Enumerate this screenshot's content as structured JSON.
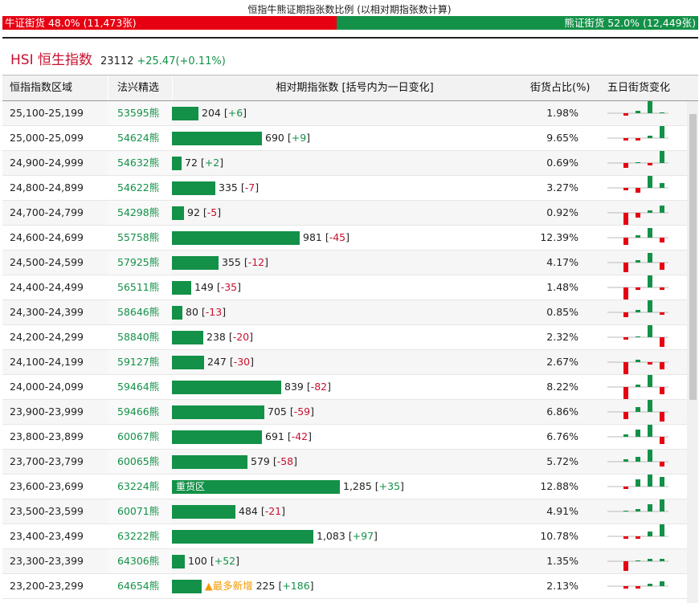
{
  "ratio": {
    "title": "恒指牛熊证期指张数比例 (以相对期指张数计算)",
    "bull_label": "牛证街货 48.0% (11,473张)",
    "bear_label": "熊证街货 52.0% (12,449张)",
    "bull_pct": 48.0,
    "bear_pct": 52.0,
    "bull_color": "#e60012",
    "bear_color": "#139148"
  },
  "index": {
    "name": "HSI 恒生指数",
    "value": "23112",
    "change": "+25.47(+0.11%)"
  },
  "columns": {
    "range": "恒指指数区域",
    "code": "法兴精选",
    "contracts": "相对期指张数 [括号内为一日变化]",
    "share": "街货占比(%)",
    "five_day": "五日街货变化"
  },
  "rows": [
    {
      "range": "25,100-25,199",
      "code": "53595熊",
      "contracts": 204,
      "contracts_label": "204",
      "change": "+6",
      "share": "1.98%",
      "spark": [
        -1,
        1,
        5,
        0,
        2
      ]
    },
    {
      "range": "25,000-25,099",
      "code": "54624熊",
      "contracts": 690,
      "contracts_label": "690",
      "change": "+9",
      "share": "9.65%",
      "spark": [
        -1,
        -1,
        1,
        5,
        -1
      ]
    },
    {
      "range": "24,900-24,999",
      "code": "54632熊",
      "contracts": 72,
      "contracts_label": "72",
      "change": "+2",
      "share": "0.69%",
      "spark": [
        -2,
        0,
        -1,
        5,
        0
      ]
    },
    {
      "range": "24,800-24,899",
      "code": "54622熊",
      "contracts": 335,
      "contracts_label": "335",
      "change": "-7",
      "share": "3.27%",
      "spark": [
        -1,
        -2,
        5,
        2,
        -1
      ]
    },
    {
      "range": "24,700-24,799",
      "code": "54298熊",
      "contracts": 92,
      "contracts_label": "92",
      "change": "-5",
      "share": "0.92%",
      "spark": [
        -5,
        -2,
        1,
        3,
        -1
      ]
    },
    {
      "range": "24,600-24,699",
      "code": "55758熊",
      "contracts": 981,
      "contracts_label": "981",
      "change": "-45",
      "share": "12.39%",
      "spark": [
        -3,
        1,
        4,
        -2,
        -3
      ]
    },
    {
      "range": "24,500-24,599",
      "code": "57925熊",
      "contracts": 355,
      "contracts_label": "355",
      "change": "-12",
      "share": "4.17%",
      "spark": [
        -4,
        1,
        4,
        -3,
        -3
      ]
    },
    {
      "range": "24,400-24,499",
      "code": "56511熊",
      "contracts": 149,
      "contracts_label": "149",
      "change": "-35",
      "share": "1.48%",
      "spark": [
        -5,
        -1,
        5,
        -1,
        -4
      ]
    },
    {
      "range": "24,300-24,399",
      "code": "58646熊",
      "contracts": 80,
      "contracts_label": "80",
      "change": "-13",
      "share": "0.85%",
      "spark": [
        -2,
        1,
        5,
        -1,
        -1
      ]
    },
    {
      "range": "24,200-24,299",
      "code": "58840熊",
      "contracts": 238,
      "contracts_label": "238",
      "change": "-20",
      "share": "2.32%",
      "spark": [
        -1,
        0,
        5,
        -4,
        -3
      ]
    },
    {
      "range": "24,100-24,199",
      "code": "59127熊",
      "contracts": 247,
      "contracts_label": "247",
      "change": "-30",
      "share": "2.67%",
      "spark": [
        -5,
        1,
        -1,
        -3,
        -3
      ]
    },
    {
      "range": "24,000-24,099",
      "code": "59464熊",
      "contracts": 839,
      "contracts_label": "839",
      "change": "-82",
      "share": "8.22%",
      "spark": [
        -5,
        1,
        5,
        -3,
        -3
      ]
    },
    {
      "range": "23,900-23,999",
      "code": "59466熊",
      "contracts": 705,
      "contracts_label": "705",
      "change": "-59",
      "share": "6.86%",
      "spark": [
        -3,
        2,
        5,
        -4,
        -4
      ]
    },
    {
      "range": "23,800-23,899",
      "code": "60067熊",
      "contracts": 691,
      "contracts_label": "691",
      "change": "-42",
      "share": "6.76%",
      "spark": [
        1,
        3,
        5,
        -3,
        -2
      ]
    },
    {
      "range": "23,700-23,799",
      "code": "60065熊",
      "contracts": 579,
      "contracts_label": "579",
      "change": "-58",
      "share": "5.72%",
      "spark": [
        1,
        2,
        5,
        -2,
        -2
      ]
    },
    {
      "range": "23,600-23,699",
      "code": "63224熊",
      "contracts": 1285,
      "contracts_label": "1,285",
      "change": "+35",
      "share": "12.88%",
      "badge": "重货区",
      "spark": [
        -1,
        3,
        5,
        4,
        2
      ]
    },
    {
      "range": "23,500-23,599",
      "code": "60071熊",
      "contracts": 484,
      "contracts_label": "484",
      "change": "-21",
      "share": "4.91%",
      "spark": [
        0,
        1,
        3,
        5,
        -1
      ]
    },
    {
      "range": "23,400-23,499",
      "code": "63222熊",
      "contracts": 1083,
      "contracts_label": "1,083",
      "change": "+97",
      "share": "10.78%",
      "spark": [
        -1,
        -1,
        2,
        5,
        3
      ]
    },
    {
      "range": "23,300-23,399",
      "code": "64306熊",
      "contracts": 100,
      "contracts_label": "100",
      "change": "+52",
      "share": "1.35%",
      "spark": [
        -4,
        0,
        1,
        1,
        3
      ]
    },
    {
      "range": "23,200-23,299",
      "code": "64654熊",
      "contracts": 225,
      "contracts_label": "225",
      "change": "+186",
      "share": "2.13%",
      "tag": "▲最多新增",
      "spark": [
        -1,
        -1,
        1,
        2,
        5
      ]
    }
  ]
}
